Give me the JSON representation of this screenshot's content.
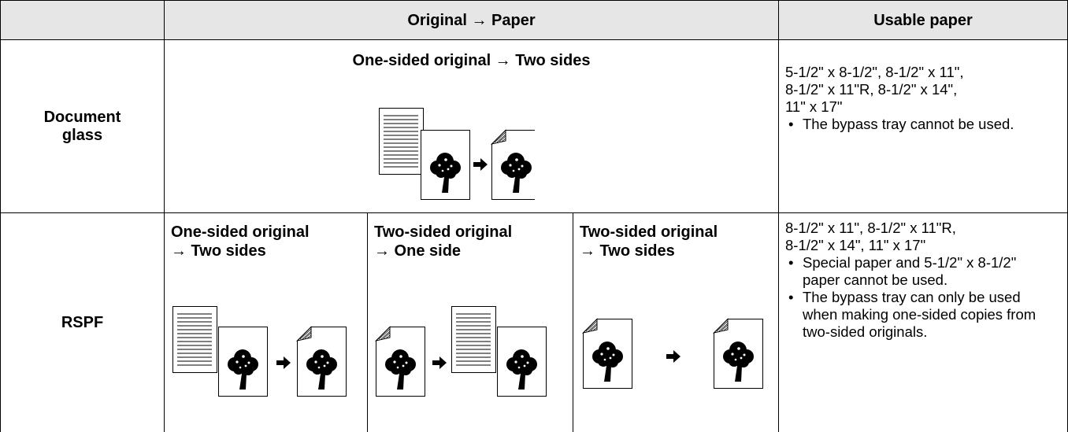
{
  "table": {
    "header": {
      "original_paper": "Original → Paper",
      "usable_paper": "Usable paper"
    },
    "rows": [
      {
        "label": "Document glass",
        "modes": [
          {
            "original": "One-sided original → Two sides"
          }
        ],
        "paper_sizes": [
          "5-1/2\" x 8-1/2\", 8-1/2\" x 11\",",
          "8-1/2\" x 11\"R, 8-1/2\" x 14\",",
          "11\" x 17\""
        ],
        "notes": [
          "The bypass tray cannot be used."
        ]
      },
      {
        "label": "RSPF",
        "modes": [
          {
            "original": "One-sided original",
            "result": "→ Two sides"
          },
          {
            "original": "Two-sided original",
            "result": "→ One side"
          },
          {
            "original": "Two-sided original",
            "result": "→ Two sides"
          }
        ],
        "paper_sizes": [
          "8-1/2\" x 11\", 8-1/2\" x 11\"R,",
          "8-1/2\" x 14\", 11\" x 17\""
        ],
        "notes": [
          "Special paper and 5-1/2\" x 8-1/2\" paper cannot be used.",
          "The bypass tray can only be used when making one-sided copies from two-sided originals."
        ]
      }
    ]
  }
}
